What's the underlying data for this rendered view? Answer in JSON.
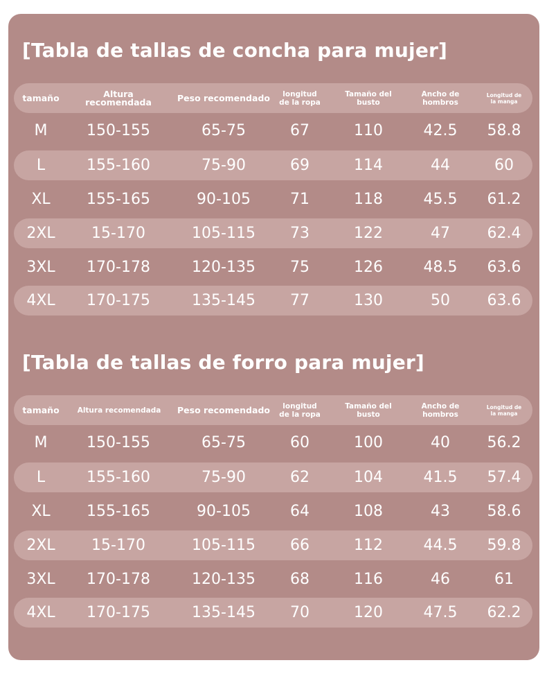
{
  "tables": [
    {
      "title": "[Tabla de tallas de concha para mujer]",
      "headers": [
        "tamaño",
        "Altura recomendada",
        "Peso recomendado",
        "longitud de la ropa",
        "Tamaño del busto",
        "Ancho de hombros",
        "Longitud de la manga"
      ],
      "rows": [
        [
          "M",
          "150-155",
          "65-75",
          "67",
          "110",
          "42.5",
          "58.8"
        ],
        [
          "L",
          "155-160",
          "75-90",
          "69",
          "114",
          "44",
          "60"
        ],
        [
          "XL",
          "155-165",
          "90-105",
          "71",
          "118",
          "45.5",
          "61.2"
        ],
        [
          "2XL",
          "15-170",
          "105-115",
          "73",
          "122",
          "47",
          "62.4"
        ],
        [
          "3XL",
          "170-178",
          "120-135",
          "75",
          "126",
          "48.5",
          "63.6"
        ],
        [
          "4XL",
          "170-175",
          "135-145",
          "77",
          "130",
          "50",
          "63.6"
        ]
      ]
    },
    {
      "title": "[Tabla de tallas de forro para mujer]",
      "headers": [
        "tamaño",
        "Altura recomendada",
        "Peso recomendado",
        "longitud de la ropa",
        "Tamaño del busto",
        "Ancho de hombros",
        "Longitud de la manga"
      ],
      "rows": [
        [
          "M",
          "150-155",
          "65-75",
          "60",
          "100",
          "40",
          "56.2"
        ],
        [
          "L",
          "155-160",
          "75-90",
          "62",
          "104",
          "41.5",
          "57.4"
        ],
        [
          "XL",
          "155-165",
          "90-105",
          "64",
          "108",
          "43",
          "58.6"
        ],
        [
          "2XL",
          "15-170",
          "105-115",
          "66",
          "112",
          "44.5",
          "59.8"
        ],
        [
          "3XL",
          "170-178",
          "120-135",
          "68",
          "116",
          "46",
          "61"
        ],
        [
          "4XL",
          "170-175",
          "135-145",
          "70",
          "120",
          "47.5",
          "62.2"
        ]
      ]
    }
  ]
}
